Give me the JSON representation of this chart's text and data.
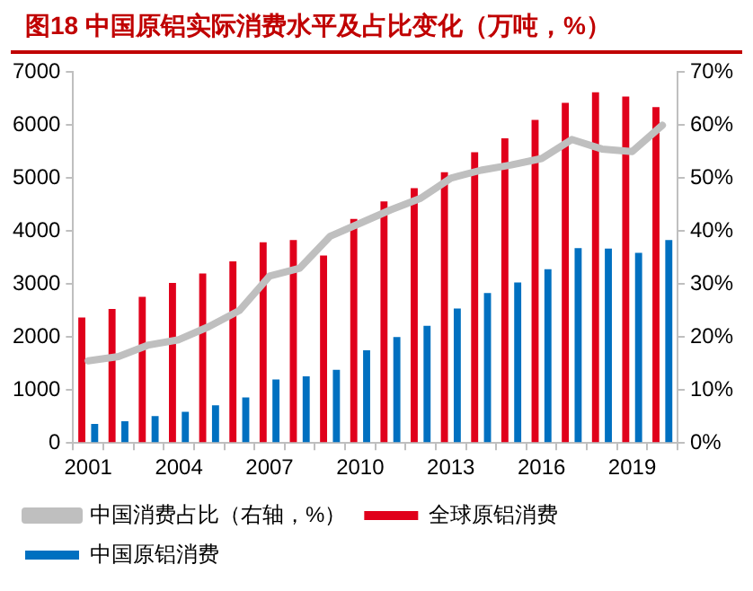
{
  "chart_data": {
    "type": "bar",
    "title": "图18 中国原铝实际消费水平及占比变化（万吨，%）",
    "categories": [
      "2001",
      null,
      null,
      "2004",
      null,
      null,
      "2007",
      null,
      null,
      "2010",
      null,
      null,
      "2013",
      null,
      null,
      "2016",
      null,
      null,
      "2019",
      null
    ],
    "series": [
      {
        "name": "全球原铝消费",
        "color": "#e0001b",
        "values": [
          2370,
          2530,
          2760,
          3020,
          3200,
          3430,
          3790,
          3830,
          3540,
          4230,
          4560,
          4810,
          5110,
          5490,
          5750,
          6100,
          6420,
          6620,
          6540,
          6340
        ]
      },
      {
        "name": "中国原铝消费",
        "color": "#0070c0",
        "values": [
          360,
          410,
          510,
          590,
          710,
          860,
          1200,
          1260,
          1380,
          1750,
          2000,
          2210,
          2540,
          2830,
          3030,
          3280,
          3680,
          3670,
          3590,
          3830
        ]
      },
      {
        "name": "中国消费占比（右轴，%）",
        "type": "line",
        "axis": "y2",
        "color": "#bfbfbf",
        "values": [
          15.5,
          16.3,
          18.5,
          19.5,
          22,
          25,
          31.5,
          33,
          39,
          41.5,
          44,
          46.2,
          50,
          51.5,
          52.5,
          53.7,
          57.3,
          55.5,
          55,
          60
        ]
      }
    ],
    "ylim": [
      0,
      7000
    ],
    "yticks": [
      0,
      1000,
      2000,
      3000,
      4000,
      5000,
      6000,
      7000
    ],
    "y2lim": [
      0,
      70
    ],
    "y2ticks": [
      {
        "value": 0,
        "label": "0%"
      },
      {
        "value": 10,
        "label": "10%"
      },
      {
        "value": 20,
        "label": "20%"
      },
      {
        "value": 30,
        "label": "30%"
      },
      {
        "value": 40,
        "label": "40%"
      },
      {
        "value": 50,
        "label": "50%"
      },
      {
        "value": 60,
        "label": "60%"
      },
      {
        "value": 70,
        "label": "70%"
      }
    ],
    "grid": false,
    "legend": "bottom",
    "marker": "none",
    "line_style": "solid"
  }
}
